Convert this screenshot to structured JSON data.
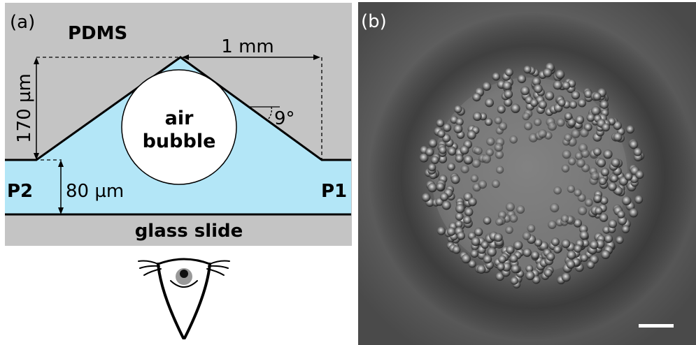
{
  "panel_a": {
    "label": "(a)",
    "pdms": "PDMS",
    "width_dim": "1 mm",
    "height_dim": "170 µm",
    "angle": "9°",
    "bubble_line1": "air",
    "bubble_line2": "bubble",
    "channel_dim": "80 µm",
    "port_left": "P2",
    "port_right": "P1",
    "substrate": "glass slide"
  },
  "panel_b": {
    "label": "(b)"
  },
  "colors": {
    "pdms": "#c4c4c4",
    "liquid": "#b3e6f7",
    "bubble": "#ffffff",
    "micrograph_bg": "#5e5e5e",
    "scale_bar": "#ffffff"
  }
}
